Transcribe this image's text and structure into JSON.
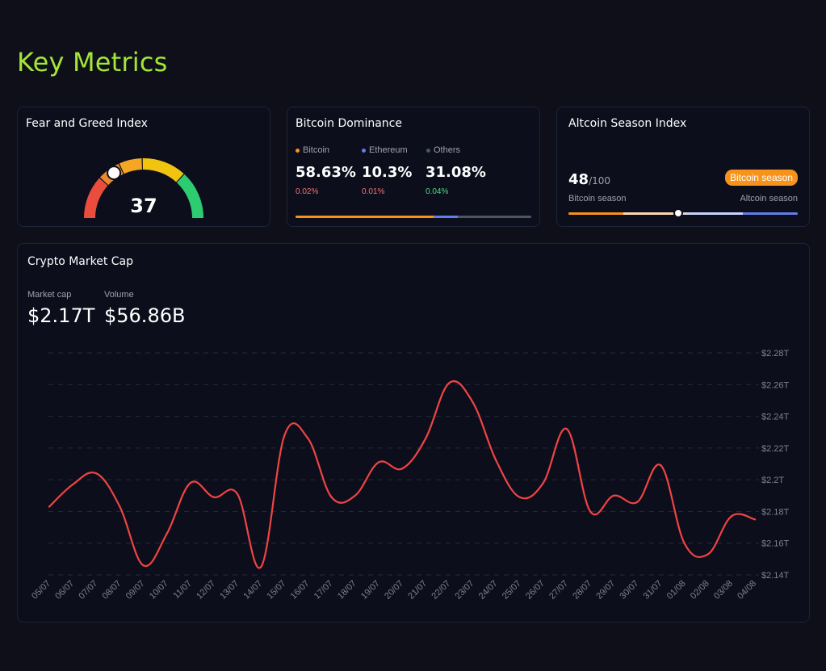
{
  "page": {
    "title": "Key Metrics"
  },
  "fear_greed": {
    "title": "Fear and Greed Index",
    "value": 37,
    "scale_max": 100
  },
  "dominance": {
    "title": "Bitcoin Dominance",
    "items": [
      {
        "name": "Bitcoin",
        "value": "58.63%",
        "change": "0.02%",
        "color": "#f7931a",
        "change_color": "#f87171",
        "share": 58.63
      },
      {
        "name": "Ethereum",
        "value": "10.3%",
        "change": "0.01%",
        "color": "#627eea",
        "change_color": "#f87171",
        "share": 10.3
      },
      {
        "name": "Others",
        "value": "31.08%",
        "change": "0.04%",
        "color": "#4b5563",
        "change_color": "#4ade80",
        "share": 31.08
      }
    ]
  },
  "altcoin": {
    "title": "Altcoin Season Index",
    "score": "48",
    "max": "/100",
    "badge": "Bitcoin season",
    "left_label": "Bitcoin season",
    "right_label": "Altcoin season",
    "level": 0.48
  },
  "market_cap": {
    "title": "Crypto Market Cap",
    "market_cap_label": "Market cap",
    "market_cap_value": "$2.17T",
    "volume_label": "Volume",
    "volume_value": "$56.86B"
  },
  "chart_data": {
    "type": "line",
    "title": "",
    "xlabel": "",
    "ylabel": "",
    "line_color": "#ef4444",
    "x": [
      "05/07",
      "06/07",
      "07/07",
      "08/07",
      "09/07",
      "10/07",
      "11/07",
      "12/07",
      "13/07",
      "14/07",
      "15/07",
      "16/07",
      "17/07",
      "18/07",
      "19/07",
      "20/07",
      "21/07",
      "22/07",
      "23/07",
      "24/07",
      "25/07",
      "26/07",
      "27/07",
      "28/07",
      "29/07",
      "30/07",
      "31/07",
      "01/08",
      "02/08",
      "03/08",
      "04/08"
    ],
    "values": [
      2.183,
      2.197,
      2.204,
      2.183,
      2.146,
      2.166,
      2.198,
      2.189,
      2.191,
      2.145,
      2.228,
      2.226,
      2.189,
      2.19,
      2.211,
      2.207,
      2.226,
      2.261,
      2.249,
      2.212,
      2.189,
      2.198,
      2.232,
      2.18,
      2.19,
      2.186,
      2.209,
      2.16,
      2.153,
      2.177,
      2.175
    ],
    "y_ticks": [
      "$2.14T",
      "$2.16T",
      "$2.18T",
      "$2.2T",
      "$2.22T",
      "$2.24T",
      "$2.26T",
      "$2.28T"
    ],
    "y_tick_values": [
      2.14,
      2.16,
      2.18,
      2.2,
      2.22,
      2.24,
      2.26,
      2.28
    ],
    "ylim": [
      2.14,
      2.28
    ],
    "grid": true
  }
}
